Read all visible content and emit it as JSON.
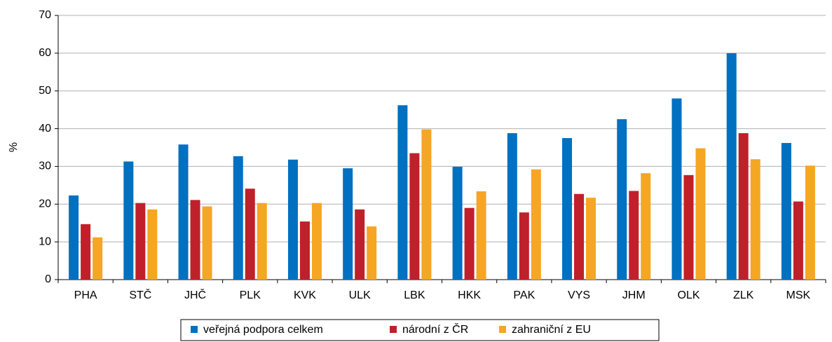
{
  "chart_data": {
    "type": "bar",
    "y_label": "%",
    "categories": [
      "PHA",
      "STČ",
      "JHČ",
      "PLK",
      "KVK",
      "ULK",
      "LBK",
      "HKK",
      "PAK",
      "VYS",
      "JHM",
      "OLK",
      "ZLK",
      "MSK"
    ],
    "series": [
      {
        "name": "veřejná podpora celkem",
        "color": "#0070c0",
        "values": [
          22.3,
          31.3,
          35.8,
          32.7,
          31.8,
          29.5,
          46.2,
          29.9,
          38.8,
          37.5,
          42.5,
          48.0,
          60.0,
          36.2
        ]
      },
      {
        "name": "národní z ČR",
        "color": "#c0202a",
        "values": [
          14.7,
          20.3,
          21.1,
          24.1,
          15.4,
          18.6,
          33.5,
          19.0,
          17.8,
          22.7,
          23.5,
          27.7,
          38.8,
          20.7
        ]
      },
      {
        "name": "zahraniční z EU",
        "color": "#f5a623",
        "values": [
          11.2,
          18.6,
          19.4,
          20.3,
          20.3,
          14.1,
          39.8,
          23.4,
          29.2,
          21.7,
          28.2,
          34.8,
          31.9,
          30.2
        ]
      }
    ],
    "ylim": [
      0,
      70
    ],
    "yticks": [
      0,
      10,
      20,
      30,
      40,
      50,
      60,
      70
    ],
    "grid": true,
    "legend": "bottom"
  }
}
